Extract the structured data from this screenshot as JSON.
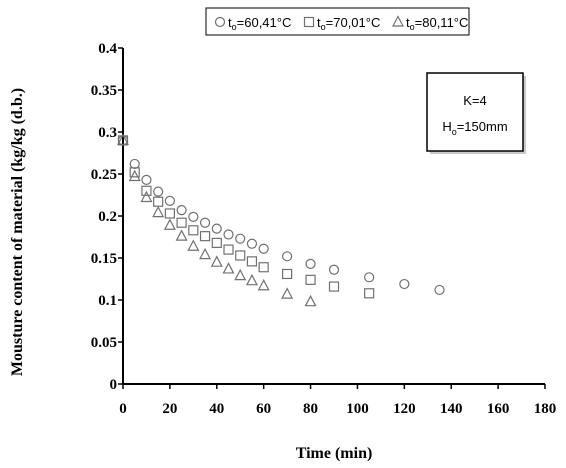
{
  "chart_data": {
    "type": "scatter",
    "title": "",
    "xlabel": "Time (min)",
    "ylabel": "Mousture content of material (kg/kg (d.b.)",
    "xlim": [
      0,
      180
    ],
    "ylim": [
      0,
      0.4
    ],
    "xticks": [
      0,
      20,
      40,
      60,
      80,
      100,
      120,
      140,
      160,
      180
    ],
    "yticks": [
      0,
      0.05,
      0.1,
      0.15,
      0.2,
      0.25,
      0.3,
      0.35,
      0.4
    ],
    "xtick_labels": [
      "0",
      "20",
      "40",
      "60",
      "80",
      "100",
      "120",
      "140",
      "160",
      "180"
    ],
    "ytick_labels": [
      "0",
      "0.05",
      "0.1",
      "0.15",
      "0.2",
      "0.25",
      "0.3",
      "0.35",
      "0.4"
    ],
    "grid": "none",
    "legend_position": "top",
    "annotation": {
      "line1": "K=4",
      "line2_main": "H",
      "line2_sub": "o",
      "line2_rest": "=150mm"
    },
    "series": [
      {
        "name_main": "t",
        "name_sub": "o",
        "name_rest": "=60,41°C",
        "marker": "circle",
        "x": [
          0,
          5,
          10,
          15,
          20,
          25,
          30,
          35,
          40,
          45,
          50,
          55,
          60,
          70,
          80,
          90,
          105,
          120,
          135
        ],
        "y": [
          0.29,
          0.262,
          0.243,
          0.229,
          0.218,
          0.207,
          0.199,
          0.192,
          0.185,
          0.178,
          0.173,
          0.167,
          0.161,
          0.152,
          0.143,
          0.136,
          0.127,
          0.119,
          0.112
        ]
      },
      {
        "name_main": "t",
        "name_sub": "o",
        "name_rest": "=70,01°C",
        "marker": "square",
        "x": [
          0,
          5,
          10,
          15,
          20,
          25,
          30,
          35,
          40,
          45,
          50,
          55,
          60,
          70,
          80,
          90,
          105
        ],
        "y": [
          0.29,
          0.252,
          0.23,
          0.217,
          0.203,
          0.192,
          0.183,
          0.176,
          0.168,
          0.16,
          0.153,
          0.146,
          0.139,
          0.131,
          0.124,
          0.116,
          0.108
        ]
      },
      {
        "name_main": "t",
        "name_sub": "o",
        "name_rest": "=80,11°C",
        "marker": "triangle",
        "x": [
          0,
          5,
          10,
          15,
          20,
          25,
          30,
          35,
          40,
          45,
          50,
          55,
          60,
          70,
          80
        ],
        "y": [
          0.29,
          0.247,
          0.222,
          0.204,
          0.189,
          0.176,
          0.164,
          0.154,
          0.145,
          0.137,
          0.129,
          0.123,
          0.117,
          0.107,
          0.098
        ]
      }
    ]
  },
  "colors": {
    "marker_stroke": "#707070",
    "axis": "#000000",
    "annotation_fill": "#ffffff",
    "annotation_stroke": "#000000"
  }
}
